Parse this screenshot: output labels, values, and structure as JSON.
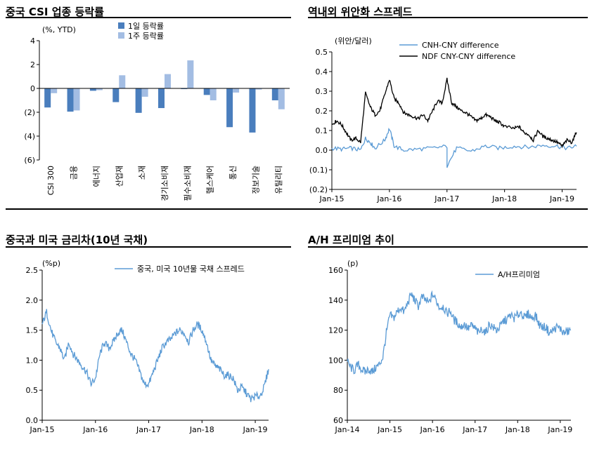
{
  "chart_data": [
    {
      "id": "csi",
      "type": "bar",
      "title": "중국 CSI 업종 등락률",
      "unit_note": "(%, YTD)",
      "categories": [
        "CSI 300",
        "금융",
        "에너지",
        "산업재",
        "소재",
        "경기소비재",
        "필수소비재",
        "헬스케어",
        "통신",
        "정보기술",
        "유틸리티"
      ],
      "series": [
        {
          "name": "1일 등락률",
          "color": "#4a7ebd",
          "values": [
            -1.6,
            -1.95,
            -0.2,
            -1.15,
            -2.05,
            -1.65,
            -0.05,
            -0.55,
            -3.25,
            -3.7,
            -1.0
          ]
        },
        {
          "name": "1주 등락률",
          "color": "#a3bde3",
          "values": [
            -0.4,
            -1.85,
            -0.15,
            1.1,
            -0.7,
            1.2,
            2.35,
            -1.0,
            -0.35,
            -0.1,
            -1.75
          ]
        }
      ],
      "ylim": [
        -6,
        4
      ],
      "yticks": [
        4,
        2,
        0,
        -2,
        -4,
        -6
      ],
      "ytick_labels": [
        "4",
        "2",
        "0",
        "(2)",
        "(4)",
        "(6)"
      ]
    },
    {
      "id": "cny",
      "type": "line",
      "title": "역내외 위안화 스프레드",
      "unit_note": "(위안/달러)",
      "x_range": [
        "2015-01",
        "2019-04"
      ],
      "xticks": [
        "Jan-15",
        "Jan-16",
        "Jan-17",
        "Jan-18",
        "Jan-19"
      ],
      "ylim": [
        -0.2,
        0.5
      ],
      "yticks": [
        0.5,
        0.4,
        0.3,
        0.2,
        0.1,
        0.0,
        -0.1,
        -0.2
      ],
      "ytick_labels": [
        "0.5",
        "0.4",
        "0.3",
        "0.2",
        "0.1",
        "0.0",
        "(0.1)",
        "(0.2)"
      ],
      "series": [
        {
          "name": "CNH-CNY difference",
          "color": "#5b9bd5",
          "points": [
            [
              "2015-01",
              0.01
            ],
            [
              "2015-03",
              0.005
            ],
            [
              "2015-05",
              0.01
            ],
            [
              "2015-07",
              0.0
            ],
            [
              "2015-08",
              0.06
            ],
            [
              "2015-09",
              0.04
            ],
            [
              "2015-10",
              0.01
            ],
            [
              "2015-12",
              0.05
            ],
            [
              "2016-01",
              0.11
            ],
            [
              "2016-02",
              0.02
            ],
            [
              "2016-04",
              0.0
            ],
            [
              "2016-07",
              0.005
            ],
            [
              "2016-10",
              0.01
            ],
            [
              "2017-01",
              0.02
            ],
            [
              "2017-01",
              -0.08
            ],
            [
              "2017-03",
              0.01
            ],
            [
              "2017-06",
              -0.005
            ],
            [
              "2017-09",
              0.02
            ],
            [
              "2017-12",
              0.01
            ],
            [
              "2018-03",
              0.02
            ],
            [
              "2018-06",
              0.015
            ],
            [
              "2018-09",
              0.025
            ],
            [
              "2018-12",
              0.02
            ],
            [
              "2019-02",
              0.01
            ],
            [
              "2019-04",
              0.02
            ]
          ]
        },
        {
          "name": "NDF CNY-CNY difference",
          "color": "#000000",
          "points": [
            [
              "2015-01",
              0.13
            ],
            [
              "2015-02",
              0.15
            ],
            [
              "2015-03",
              0.13
            ],
            [
              "2015-04",
              0.09
            ],
            [
              "2015-05",
              0.05
            ],
            [
              "2015-06",
              0.06
            ],
            [
              "2015-07",
              0.04
            ],
            [
              "2015-08",
              0.29
            ],
            [
              "2015-09",
              0.22
            ],
            [
              "2015-10",
              0.18
            ],
            [
              "2015-11",
              0.2
            ],
            [
              "2015-12",
              0.28
            ],
            [
              "2016-01",
              0.36
            ],
            [
              "2016-02",
              0.26
            ],
            [
              "2016-03",
              0.24
            ],
            [
              "2016-04",
              0.19
            ],
            [
              "2016-05",
              0.18
            ],
            [
              "2016-06",
              0.17
            ],
            [
              "2016-07",
              0.16
            ],
            [
              "2016-08",
              0.18
            ],
            [
              "2016-09",
              0.15
            ],
            [
              "2016-10",
              0.2
            ],
            [
              "2016-11",
              0.25
            ],
            [
              "2016-12",
              0.24
            ],
            [
              "2017-01",
              0.36
            ],
            [
              "2017-02",
              0.24
            ],
            [
              "2017-03",
              0.22
            ],
            [
              "2017-04",
              0.2
            ],
            [
              "2017-05",
              0.19
            ],
            [
              "2017-06",
              0.17
            ],
            [
              "2017-07",
              0.15
            ],
            [
              "2017-08",
              0.16
            ],
            [
              "2017-09",
              0.18
            ],
            [
              "2017-10",
              0.17
            ],
            [
              "2017-11",
              0.15
            ],
            [
              "2017-12",
              0.14
            ],
            [
              "2018-01",
              0.12
            ],
            [
              "2018-03",
              0.11
            ],
            [
              "2018-04",
              0.12
            ],
            [
              "2018-05",
              0.09
            ],
            [
              "2018-06",
              0.08
            ],
            [
              "2018-07",
              0.05
            ],
            [
              "2018-08",
              0.1
            ],
            [
              "2018-09",
              0.07
            ],
            [
              "2018-10",
              0.06
            ],
            [
              "2018-11",
              0.05
            ],
            [
              "2018-12",
              0.04
            ],
            [
              "2019-01",
              0.02
            ],
            [
              "2019-02",
              0.05
            ],
            [
              "2019-03",
              0.04
            ],
            [
              "2019-04",
              0.09
            ]
          ]
        }
      ]
    },
    {
      "id": "bond",
      "type": "line",
      "title": "중국과 미국 금리차(10년 국채)",
      "unit_note": "(%p)",
      "x_range": [
        "2015-01",
        "2019-04"
      ],
      "xticks": [
        "Jan-15",
        "Jan-16",
        "Jan-17",
        "Jan-18",
        "Jan-19"
      ],
      "ylim": [
        0.0,
        2.5
      ],
      "yticks": [
        2.5,
        2.0,
        1.5,
        1.0,
        0.5,
        0.0
      ],
      "ytick_labels": [
        "2.5",
        "2.0",
        "1.5",
        "1.0",
        "0.5",
        "0.0"
      ],
      "series": [
        {
          "name": "중국, 미국 10년물 국채 스프레드",
          "color": "#5b9bd5",
          "points": [
            [
              "2015-01",
              1.6
            ],
            [
              "2015-02",
              1.8
            ],
            [
              "2015-03",
              1.5
            ],
            [
              "2015-04",
              1.3
            ],
            [
              "2015-05",
              1.2
            ],
            [
              "2015-06",
              1.0
            ],
            [
              "2015-07",
              1.3
            ],
            [
              "2015-08",
              1.1
            ],
            [
              "2015-09",
              1.0
            ],
            [
              "2015-10",
              0.9
            ],
            [
              "2015-11",
              0.8
            ],
            [
              "2015-12",
              0.6
            ],
            [
              "2016-01",
              0.7
            ],
            [
              "2016-02",
              1.1
            ],
            [
              "2016-03",
              1.3
            ],
            [
              "2016-04",
              1.2
            ],
            [
              "2016-05",
              1.3
            ],
            [
              "2016-06",
              1.45
            ],
            [
              "2016-07",
              1.5
            ],
            [
              "2016-08",
              1.3
            ],
            [
              "2016-09",
              1.1
            ],
            [
              "2016-10",
              1.0
            ],
            [
              "2016-11",
              0.8
            ],
            [
              "2016-12",
              0.6
            ],
            [
              "2017-01",
              0.6
            ],
            [
              "2017-02",
              0.8
            ],
            [
              "2017-03",
              1.0
            ],
            [
              "2017-04",
              1.2
            ],
            [
              "2017-05",
              1.3
            ],
            [
              "2017-06",
              1.35
            ],
            [
              "2017-07",
              1.45
            ],
            [
              "2017-08",
              1.5
            ],
            [
              "2017-09",
              1.45
            ],
            [
              "2017-10",
              1.3
            ],
            [
              "2017-11",
              1.5
            ],
            [
              "2017-12",
              1.6
            ],
            [
              "2018-01",
              1.5
            ],
            [
              "2018-02",
              1.3
            ],
            [
              "2018-03",
              1.0
            ],
            [
              "2018-04",
              0.9
            ],
            [
              "2018-05",
              0.85
            ],
            [
              "2018-06",
              0.75
            ],
            [
              "2018-07",
              0.75
            ],
            [
              "2018-08",
              0.7
            ],
            [
              "2018-09",
              0.5
            ],
            [
              "2018-10",
              0.55
            ],
            [
              "2018-11",
              0.45
            ],
            [
              "2018-12",
              0.35
            ],
            [
              "2019-01",
              0.4
            ],
            [
              "2019-02",
              0.4
            ],
            [
              "2019-03",
              0.55
            ],
            [
              "2019-04",
              0.85
            ]
          ]
        }
      ]
    },
    {
      "id": "ah",
      "type": "line",
      "title": "A/H 프리미엄 추이",
      "unit_note": "(p)",
      "x_range": [
        "2014-01",
        "2019-04"
      ],
      "xticks": [
        "Jan-14",
        "Jan-15",
        "Jan-16",
        "Jan-17",
        "Jan-18",
        "Jan-19"
      ],
      "ylim": [
        60,
        160
      ],
      "yticks": [
        160,
        140,
        120,
        100,
        80,
        60
      ],
      "ytick_labels": [
        "160",
        "140",
        "120",
        "100",
        "80",
        "60"
      ],
      "series": [
        {
          "name": "A/H프리미엄",
          "color": "#5b9bd5",
          "points": [
            [
              "2014-01",
              99
            ],
            [
              "2014-02",
              95
            ],
            [
              "2014-03",
              93
            ],
            [
              "2014-04",
              97
            ],
            [
              "2014-05",
              94
            ],
            [
              "2014-06",
              92
            ],
            [
              "2014-07",
              94
            ],
            [
              "2014-08",
              92
            ],
            [
              "2014-09",
              95
            ],
            [
              "2014-10",
              97
            ],
            [
              "2014-11",
              102
            ],
            [
              "2014-12",
              118
            ],
            [
              "2015-01",
              130
            ],
            [
              "2015-02",
              128
            ],
            [
              "2015-03",
              132
            ],
            [
              "2015-04",
              135
            ],
            [
              "2015-05",
              132
            ],
            [
              "2015-06",
              138
            ],
            [
              "2015-07",
              144
            ],
            [
              "2015-08",
              140
            ],
            [
              "2015-09",
              136
            ],
            [
              "2015-10",
              142
            ],
            [
              "2015-11",
              140
            ],
            [
              "2015-12",
              138
            ],
            [
              "2016-01",
              144
            ],
            [
              "2016-02",
              140
            ],
            [
              "2016-03",
              135
            ],
            [
              "2016-04",
              136
            ],
            [
              "2016-05",
              131
            ],
            [
              "2016-06",
              133
            ],
            [
              "2016-07",
              127
            ],
            [
              "2016-08",
              125
            ],
            [
              "2016-09",
              122
            ],
            [
              "2016-10",
              124
            ],
            [
              "2016-11",
              121
            ],
            [
              "2016-12",
              123
            ],
            [
              "2017-01",
              121
            ],
            [
              "2017-02",
              118
            ],
            [
              "2017-03",
              121
            ],
            [
              "2017-04",
              118
            ],
            [
              "2017-05",
              124
            ],
            [
              "2017-06",
              122
            ],
            [
              "2017-07",
              120
            ],
            [
              "2017-08",
              122
            ],
            [
              "2017-09",
              126
            ],
            [
              "2017-10",
              127
            ],
            [
              "2017-11",
              130
            ],
            [
              "2017-12",
              128
            ],
            [
              "2018-01",
              130
            ],
            [
              "2018-02",
              132
            ],
            [
              "2018-03",
              128
            ],
            [
              "2018-04",
              131
            ],
            [
              "2018-05",
              128
            ],
            [
              "2018-06",
              130
            ],
            [
              "2018-07",
              124
            ],
            [
              "2018-08",
              122
            ],
            [
              "2018-09",
              122
            ],
            [
              "2018-10",
              118
            ],
            [
              "2018-11",
              120
            ],
            [
              "2018-12",
              122
            ],
            [
              "2019-01",
              121
            ],
            [
              "2019-02",
              118
            ],
            [
              "2019-03",
              119
            ],
            [
              "2019-04",
              120
            ]
          ]
        }
      ]
    }
  ]
}
